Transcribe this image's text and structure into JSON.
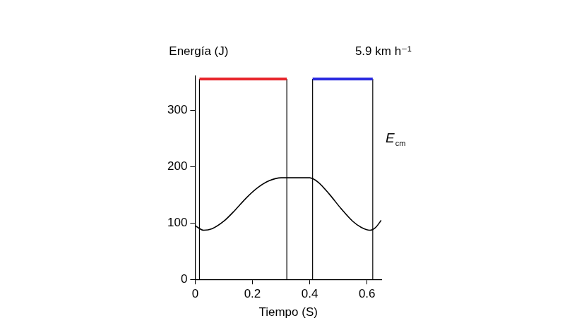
{
  "chart_data": {
    "type": "line",
    "y_label": "Energía (J)",
    "x_label": "Tiempo (S)",
    "speed_label": "5.9 km h⁻¹",
    "series_label": {
      "text": "E",
      "subscript": "cm"
    },
    "x": [
      0,
      0.03,
      0.06,
      0.1,
      0.14,
      0.18,
      0.22,
      0.26,
      0.3,
      0.35,
      0.4,
      0.43,
      0.47,
      0.51,
      0.55,
      0.58,
      0.61,
      0.63,
      0.65
    ],
    "values": [
      95,
      87,
      90,
      103,
      123,
      145,
      163,
      175,
      180,
      180,
      180,
      172,
      150,
      125,
      103,
      92,
      87,
      92,
      105
    ],
    "color": "#000000",
    "xlim": [
      0,
      0.65
    ],
    "xticks": [
      0,
      0.2,
      0.4,
      0.6
    ],
    "ylim": [
      0,
      360
    ],
    "yticks": [
      0,
      100,
      200,
      300
    ],
    "grid": false,
    "phases": [
      {
        "color": "#e8262c",
        "x": [
          0.015,
          0.32
        ],
        "y": 355
      },
      {
        "color": "#2a2ae0",
        "x": [
          0.41,
          0.62
        ],
        "y": 355
      }
    ]
  }
}
